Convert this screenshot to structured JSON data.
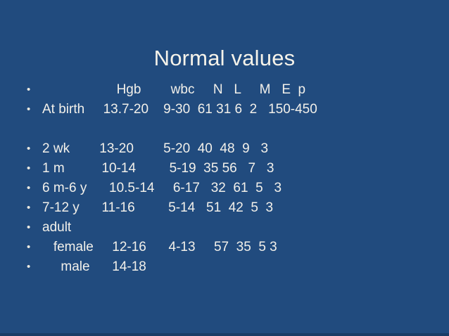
{
  "title": "Normal values",
  "bullet_char": "•",
  "colors": {
    "background": "#214B7E",
    "bottom_strip": "#1A3C66",
    "title_text": "#F6F3EA",
    "body_text": "#F2F0EA"
  },
  "list": {
    "rows": [
      {
        "bullet": true,
        "text": "                    Hgb        wbc     N   L     M   E  p"
      },
      {
        "bullet": true,
        "text": "At birth     13.7-20    9-30  61 31 6  2   150-450"
      },
      {
        "bullet": false,
        "text": ""
      },
      {
        "bullet": true,
        "text": "2 wk        13-20        5-20  40  48  9   3"
      },
      {
        "bullet": true,
        "text": "1 m          10-14         5-19  35 56   7   3"
      },
      {
        "bullet": true,
        "text": "6 m-6 y      10.5-14     6-17   32  61  5   3"
      },
      {
        "bullet": true,
        "text": "7-12 y      11-16         5-14   51  42  5  3"
      },
      {
        "bullet": true,
        "text": "adult"
      },
      {
        "bullet": true,
        "text": "   female     12-16      4-13     57  35  5 3"
      },
      {
        "bullet": true,
        "text": "     male      14-18"
      }
    ]
  },
  "table": {
    "columns": [
      "Hgb",
      "wbc",
      "N",
      "L",
      "M",
      "E",
      "p"
    ],
    "rows": [
      {
        "label": "At birth",
        "Hgb": "13.7-20",
        "wbc": "9-30",
        "N": "61",
        "L": "31",
        "M": "6",
        "E": "2",
        "p": "150-450"
      },
      {
        "label": "2 wk",
        "Hgb": "13-20",
        "wbc": "5-20",
        "N": "40",
        "L": "48",
        "M": "9",
        "E": "3",
        "p": ""
      },
      {
        "label": "1 m",
        "Hgb": "10-14",
        "wbc": "5-19",
        "N": "35",
        "L": "56",
        "M": "7",
        "E": "3",
        "p": ""
      },
      {
        "label": "6 m-6 y",
        "Hgb": "10.5-14",
        "wbc": "6-17",
        "N": "32",
        "L": "61",
        "M": "5",
        "E": "3",
        "p": ""
      },
      {
        "label": "7-12 y",
        "Hgb": "11-16",
        "wbc": "5-14",
        "N": "51",
        "L": "42",
        "M": "5",
        "E": "3",
        "p": ""
      },
      {
        "label": "adult female",
        "Hgb": "12-16",
        "wbc": "4-13",
        "N": "57",
        "L": "35",
        "M": "5",
        "E": "3",
        "p": ""
      },
      {
        "label": "adult male",
        "Hgb": "14-18",
        "wbc": "",
        "N": "",
        "L": "",
        "M": "",
        "E": "",
        "p": ""
      }
    ]
  }
}
